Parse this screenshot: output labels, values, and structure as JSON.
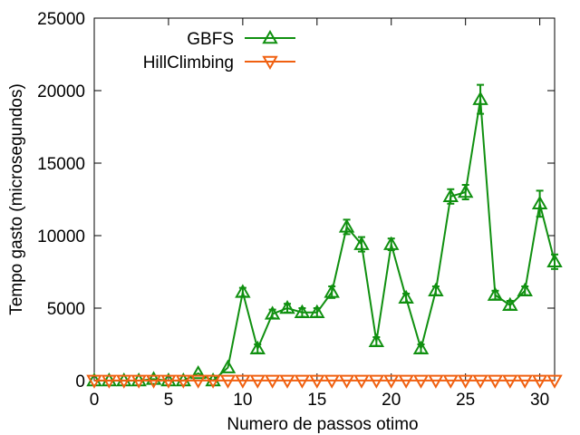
{
  "chart_data": {
    "type": "line",
    "title": "",
    "xlabel": "Numero de passos otimo",
    "ylabel": "Tempo gasto (microsegundos)",
    "xlim": [
      0,
      31
    ],
    "ylim": [
      0,
      25000
    ],
    "xticks": [
      0,
      5,
      10,
      15,
      20,
      25,
      30
    ],
    "yticks": [
      0,
      5000,
      10000,
      15000,
      20000,
      25000
    ],
    "grid": false,
    "legend_position": "top-center",
    "series": [
      {
        "name": "GBFS",
        "color": "#109010",
        "marker": "triangle-up",
        "x": [
          0,
          1,
          2,
          3,
          4,
          5,
          6,
          7,
          8,
          9,
          10,
          11,
          12,
          13,
          14,
          15,
          16,
          17,
          18,
          19,
          20,
          21,
          22,
          23,
          24,
          25,
          26,
          27,
          28,
          29,
          30,
          31
        ],
        "y": [
          0,
          0,
          0,
          0,
          100,
          0,
          0,
          500,
          0,
          900,
          6100,
          2200,
          4600,
          5000,
          4700,
          4700,
          6100,
          10600,
          9400,
          2700,
          9400,
          5700,
          2200,
          6200,
          12700,
          13000,
          19400,
          5900,
          5200,
          6200,
          12200,
          8200
        ],
        "err": [
          0,
          0,
          0,
          0,
          0,
          0,
          0,
          0,
          0,
          0,
          300,
          300,
          300,
          300,
          300,
          300,
          400,
          500,
          500,
          300,
          400,
          300,
          300,
          300,
          500,
          500,
          1000,
          300,
          300,
          300,
          900,
          500
        ]
      },
      {
        "name": "HillClimbing",
        "color": "#f06010",
        "marker": "triangle-down",
        "x": [
          0,
          1,
          2,
          3,
          4,
          5,
          6,
          7,
          8,
          9,
          10,
          11,
          12,
          13,
          14,
          15,
          16,
          17,
          18,
          19,
          20,
          21,
          22,
          23,
          24,
          25,
          26,
          27,
          28,
          29,
          30,
          31
        ],
        "y": [
          10,
          10,
          10,
          10,
          10,
          10,
          10,
          10,
          10,
          10,
          10,
          10,
          10,
          10,
          10,
          10,
          10,
          10,
          10,
          10,
          10,
          10,
          10,
          10,
          10,
          10,
          10,
          10,
          10,
          10,
          10,
          10
        ],
        "err": []
      }
    ]
  }
}
